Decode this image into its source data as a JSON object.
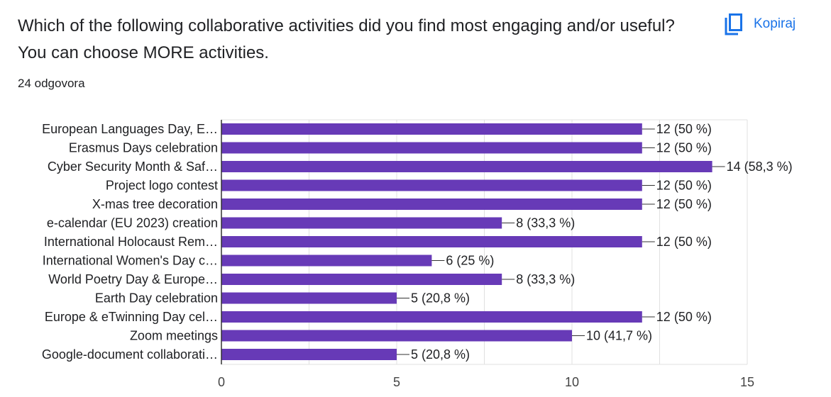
{
  "question": {
    "title": "Which of the following collaborative activities did you find most engaging and/or useful? You can choose MORE activities.",
    "responses": "24 odgovora"
  },
  "copy_button": {
    "label": "Kopiraj",
    "icon": "copy-icon"
  },
  "colors": {
    "bar": "#673ab7",
    "accent": "#1a73e8",
    "grid": "#e0e0e0",
    "axis": "#333333",
    "text": "#202124"
  },
  "chart_data": {
    "type": "bar",
    "orientation": "horizontal",
    "categories": [
      "European Languages Day, E…",
      "Erasmus Days celebration",
      "Cyber Security Month & Saf…",
      "Project logo contest",
      "X-mas tree decoration",
      "e-calendar (EU 2023) creation",
      "International Holocaust Rem…",
      "International Women's Day c…",
      "World Poetry Day & Europe…",
      "Earth Day celebration",
      "Europe & eTwinning Day cel…",
      "Zoom meetings",
      "Google-document collaborati…"
    ],
    "values": [
      12,
      12,
      14,
      12,
      12,
      8,
      12,
      6,
      8,
      5,
      12,
      10,
      5
    ],
    "value_labels": [
      "12 (50 %)",
      "12 (50 %)",
      "14 (58,3 %)",
      "12 (50 %)",
      "12 (50 %)",
      "8 (33,3 %)",
      "12 (50 %)",
      "6 (25 %)",
      "8 (33,3 %)",
      "5 (20,8 %)",
      "12 (50 %)",
      "10 (41,7 %)",
      "5 (20,8 %)"
    ],
    "xlim": [
      0,
      15
    ],
    "xticks": [
      0,
      5,
      10,
      15
    ],
    "xtick_labels": [
      "0",
      "5",
      "10",
      "15"
    ],
    "grid": true,
    "legend": "none"
  }
}
